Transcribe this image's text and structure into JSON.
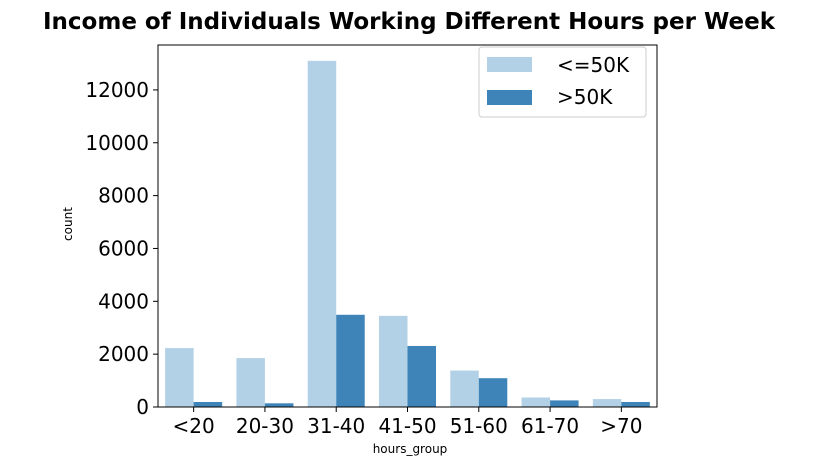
{
  "chart_data": {
    "type": "bar",
    "title": "Income of Individuals Working Different Hours per Week",
    "xlabel": "hours_group",
    "ylabel": "count",
    "categories": [
      "<20",
      "20-30",
      "31-40",
      "41-50",
      "51-60",
      "61-70",
      ">70"
    ],
    "series": [
      {
        "name": "<=50K",
        "color": "#b3d1e6",
        "values": [
          2230,
          1850,
          13100,
          3450,
          1380,
          360,
          300
        ]
      },
      {
        "name": ">50K",
        "color": "#3f84b8",
        "values": [
          190,
          140,
          3490,
          2310,
          1090,
          250,
          190
        ]
      }
    ],
    "ylim": [
      0,
      13700
    ],
    "yticks": [
      0,
      2000,
      4000,
      6000,
      8000,
      10000,
      12000
    ],
    "grid": false,
    "legend": "top-right"
  }
}
